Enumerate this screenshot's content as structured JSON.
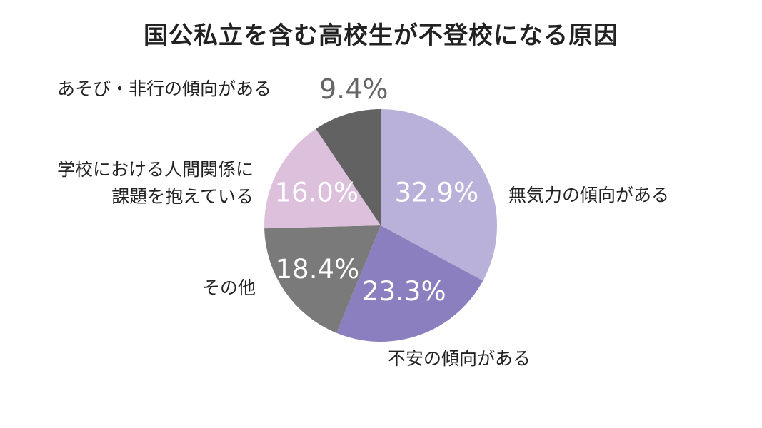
{
  "chart_data": {
    "type": "pie",
    "title": "国公私立を含む高校生が不登校になる原因",
    "start_angle_deg": 0,
    "direction": "clockwise",
    "slices": [
      {
        "label_lines": [
          "無気力の傾向がある"
        ],
        "value": 32.9,
        "value_label": "32.9%",
        "color": "#b9b1d9"
      },
      {
        "label_lines": [
          "不安の傾向がある"
        ],
        "value": 23.3,
        "value_label": "23.3%",
        "color": "#8c7fbf"
      },
      {
        "label_lines": [
          "その他"
        ],
        "value": 18.4,
        "value_label": "18.4%",
        "color": "#7a7a7a"
      },
      {
        "label_lines": [
          "学校における人間関係に",
          "課題を抱えている"
        ],
        "value": 16.0,
        "value_label": "16.0%",
        "color": "#dcc0dc"
      },
      {
        "label_lines": [
          "あそび・非行の傾向がある"
        ],
        "value": 9.4,
        "value_label": "9.4%",
        "color": "#626262"
      }
    ]
  }
}
